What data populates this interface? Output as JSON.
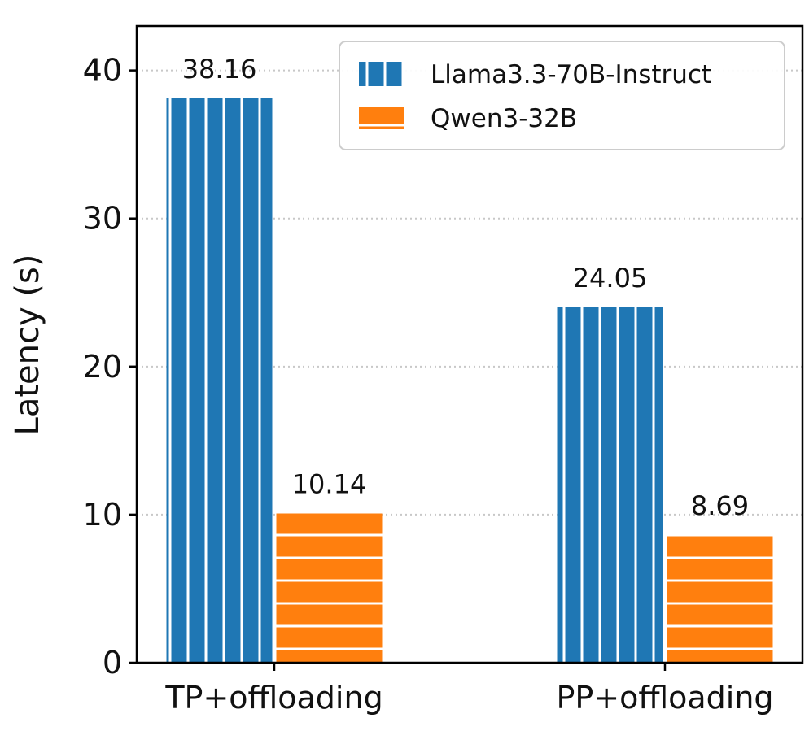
{
  "chart_data": {
    "type": "bar",
    "categories": [
      "TP+offloading",
      "PP+offloading"
    ],
    "series": [
      {
        "name": "Llama3.3-70B-Instruct",
        "values": [
          38.16,
          24.05
        ],
        "value_labels": [
          "38.16",
          "24.05"
        ],
        "color": "#1f77b4",
        "hatch": "vertical-lines"
      },
      {
        "name": "Qwen3-32B",
        "values": [
          10.14,
          8.69
        ],
        "value_labels": [
          "10.14",
          "8.69"
        ],
        "color": "#ff7f0e",
        "hatch": "horizontal-lines"
      }
    ],
    "title": "",
    "xlabel": "",
    "ylabel": "Latency (s)",
    "ylim": [
      0,
      43
    ],
    "yticks": [
      0,
      10,
      20,
      30,
      40
    ],
    "ytick_labels": [
      "0",
      "10",
      "20",
      "30",
      "40"
    ],
    "grid": "horizontal dotted",
    "legend_position": "top-right"
  }
}
